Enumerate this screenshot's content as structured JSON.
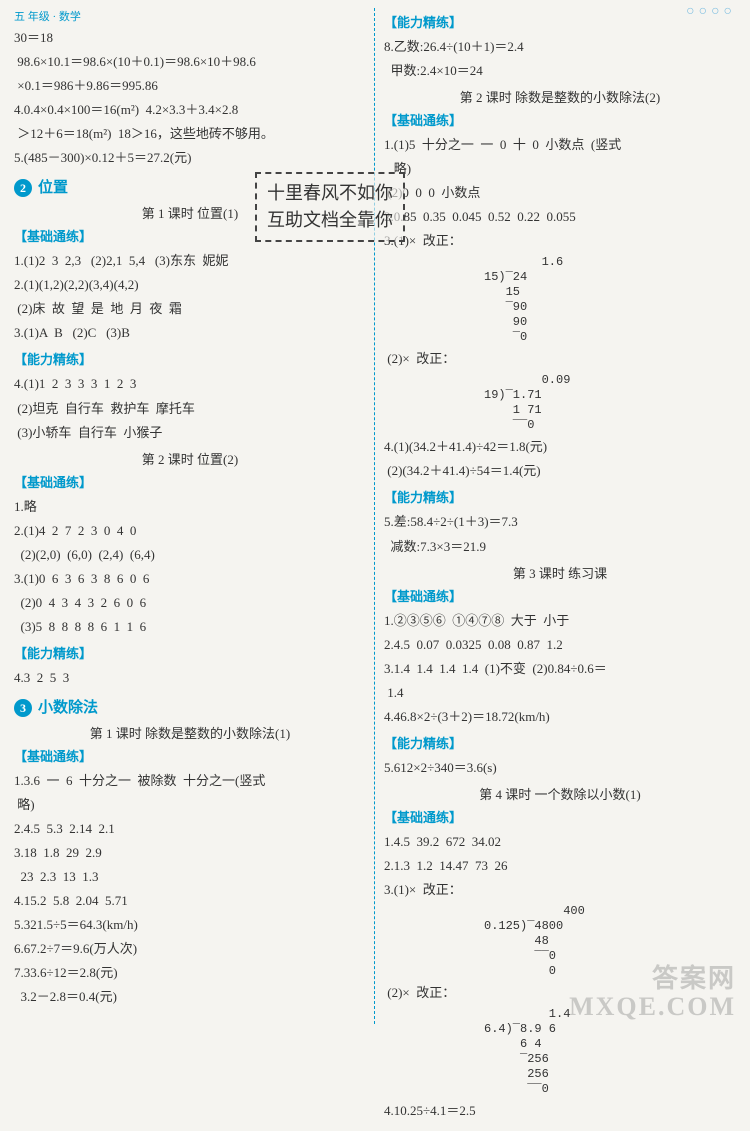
{
  "meta": {
    "topLeft": "五 年级 · 数学",
    "watermarkTR": "○○○○",
    "watermarkBR1": "答案网",
    "watermarkBR2": "MXQE.COM",
    "stamp1": "十里春风不如你",
    "stamp2": "互助文档全靠你"
  },
  "left": {
    "l01": "30＝18",
    "l02": " 98.6×10.1＝98.6×(10＋0.1)＝98.6×10＋98.6",
    "l03": " ×0.1＝986＋9.86＝995.86",
    "l04": "4.0.4×0.4×100＝16(m²)  4.2×3.3＋3.4×2.8",
    "l05": " ＞12＋6＝18(m²)  18＞16，这些地砖不够用。",
    "l06": "5.(485－300)×0.12＋5＝27.2(元)",
    "unit2num": "2",
    "unit2": "位置",
    "sub2a": "第 1 课时  位置(1)",
    "h_basic": "基础通练",
    "l07": "1.(1)2  3  2,3   (2)2,1  5,4   (3)东东  妮妮",
    "l08": "2.(1)(1,2)(2,2)(3,4)(4,2)",
    "l09": " (2)床  故  望  是  地  月  夜  霜",
    "l10": "3.(1)A  B   (2)C   (3)B",
    "h_skill": "能力精练",
    "l11": "4.(1)1  2  3  3  3  1  2  3",
    "l12": " (2)坦克  自行车  救护车  摩托车",
    "l13": " (3)小轿车  自行车  小猴子",
    "sub2b": "第 2 课时  位置(2)",
    "l14": "1.略",
    "l15": "2.(1)4  2  7  2  3  0  4  0",
    "l16": "  (2)(2,0)  (6,0)  (2,4)  (6,4)",
    "l17": "3.(1)0  6  3  6  3  8  6  0  6",
    "l18": "  (2)0  4  3  4  3  2  6  0  6",
    "l19": "  (3)5  8  8  8  8  6  1  1  6",
    "l20": "4.3  2  5  3",
    "unit3num": "3",
    "unit3": "小数除法",
    "sub3a": "第 1 课时  除数是整数的小数除法(1)",
    "l21": "1.3.6  一  6  十分之一  被除数  十分之一(竖式",
    "l22": " 略)",
    "l23": "2.4.5  5.3  2.14  2.1",
    "l24": "3.18  1.8  29  2.9",
    "l25": "  23  2.3  13  1.3",
    "l26": "4.15.2  5.8  2.04  5.71",
    "l27": "5.321.5÷5＝64.3(km/h)",
    "l28": "6.67.2÷7＝9.6(万人次)",
    "l29": "7.33.6÷12＝2.8(元)",
    "l30": "  3.2－2.8＝0.4(元)"
  },
  "right": {
    "h_skill": "能力精练",
    "r01": "8.乙数:26.4÷(10＋1)＝2.4",
    "r02": "  甲数:2.4×10＝24",
    "sub_b": "第 2 课时  除数是整数的小数除法(2)",
    "h_basic": "基础通练",
    "r03": "1.(1)5  十分之一  一  0  十  0  小数点  (竖式",
    "r04": "   略)",
    "r05": " (2)0  0  0  小数点",
    "r06": "2.0.85  0.35  0.045  0.52  0.22  0.055",
    "r07": "3.(1)×  改正：",
    "div1": "        1.6\n15)‾24  \n   15   \n   ‾90  \n    90  \n    ‾0  ",
    "r08": " (2)×  改正：",
    "div2": "        0.09\n19)‾1.71\n    1 71\n    ‾‾0 ",
    "r09": "4.(1)(34.2＋41.4)÷42＝1.8(元)",
    "r10": " (2)(34.2＋41.4)÷54＝1.4(元)",
    "r11": "5.差:58.4÷2÷(1＋3)＝7.3",
    "r12": "  减数:7.3×3＝21.9",
    "sub_c": "第 3 课时  练习课",
    "r13": "1.②③⑤⑥  ①④⑦⑧  大于  小于",
    "r14": "2.4.5  0.07  0.0325  0.08  0.87  1.2",
    "r15": "3.1.4  1.4  1.4  1.4  (1)不变  (2)0.84÷0.6＝",
    "r16": " 1.4",
    "r17": "4.46.8×2÷(3＋2)＝18.72(km/h)",
    "r18": "5.612×2÷340＝3.6(s)",
    "sub_d": "第 4 课时  一个数除以小数(1)",
    "r19": "1.4.5  39.2  672  34.02",
    "r20": "2.1.3  1.2  14.47  73  26",
    "r21": "3.(1)×  改正：",
    "div3": "           400\n0.125)‾4800 \n       48   \n       ‾‾0  \n         0  ",
    "r22": " (2)×  改正：",
    "div4": "         1.4\n6.4)‾8.9 6\n     6 4  \n     ‾256 \n      256 \n      ‾‾0 ",
    "r23": "4.10.25÷4.1＝2.5"
  }
}
